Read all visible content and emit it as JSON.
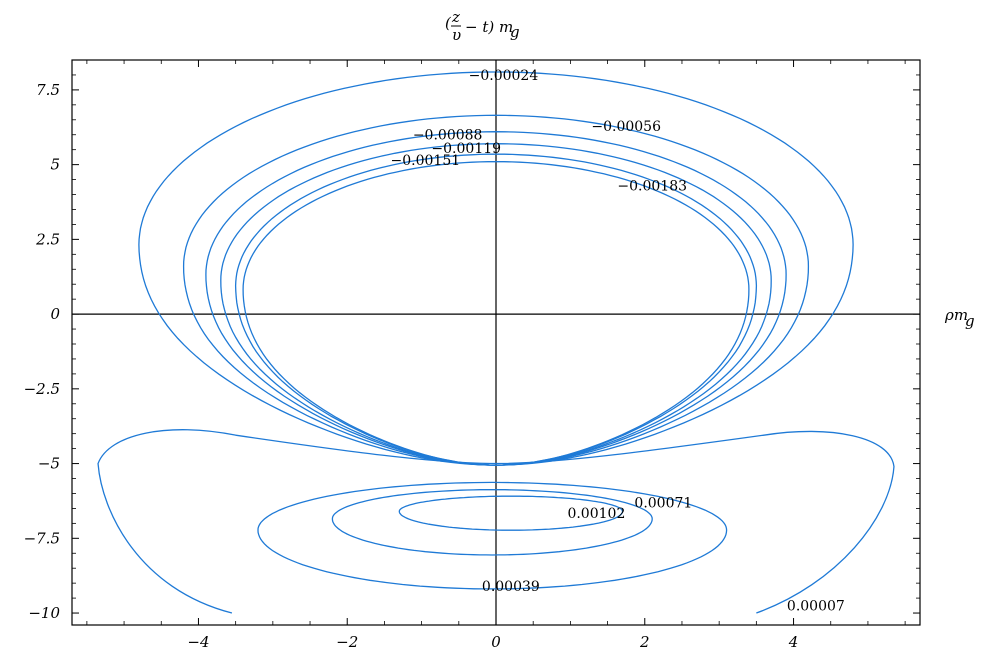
{
  "chart_data": {
    "type": "contour",
    "title": "(z/υ − t) m_g",
    "xlabel": "ρ m_g",
    "ylabel": "(z/υ − t) m_g",
    "xlim": [
      -5.7,
      5.7
    ],
    "ylim": [
      -10.4,
      8.5
    ],
    "x_ticks": [
      -4,
      -2,
      0,
      2,
      4
    ],
    "y_ticks": [
      7.5,
      5,
      2.5,
      0,
      -2.5,
      -5,
      -7.5,
      -10
    ],
    "x_tick_labels": [
      "−4",
      "−2",
      "0",
      "2",
      "4"
    ],
    "y_tick_labels": [
      "7.5",
      "5",
      "2.5",
      "0",
      "−2.5",
      "−5",
      "−7.5",
      "−10"
    ],
    "line_color": "#1f7ad6",
    "upper_contours": [
      {
        "label": "−0.00024",
        "top": 8.1,
        "halfwidth": 4.8
      },
      {
        "label": "−0.00056",
        "top": 6.65,
        "halfwidth": 4.2
      },
      {
        "label": "−0.00088",
        "top": 6.1,
        "halfwidth": 3.9
      },
      {
        "label": "−0.00119",
        "top": 5.7,
        "halfwidth": 3.7
      },
      {
        "label": "−0.00151",
        "top": 5.35,
        "halfwidth": 3.5
      },
      {
        "label": "−0.00183",
        "top": 5.1,
        "halfwidth": 3.4
      }
    ],
    "upper_bottom_y": -5.05,
    "lower_contours": [
      {
        "label": "0.00102",
        "xmin": -1.3,
        "xmax": 1.7,
        "ytop": -6.0,
        "ybot": -7.2
      },
      {
        "label": "0.00071",
        "xmin": -2.2,
        "xmax": 2.1,
        "ytop": -5.7,
        "ybot": -8.0
      },
      {
        "label": "0.00039",
        "xmin": -3.2,
        "xmax": 3.1,
        "ytop": -5.35,
        "ybot": -9.1
      },
      {
        "label": "0.00007",
        "outer": true
      }
    ],
    "contour_labels": [
      {
        "text": "−0.00024",
        "x": 0.1,
        "y": 8.0
      },
      {
        "text": "−0.00056",
        "x": 1.75,
        "y": 6.3
      },
      {
        "text": "−0.00088",
        "x": -0.65,
        "y": 6.0
      },
      {
        "text": "−0.00119",
        "x": -0.4,
        "y": 5.55
      },
      {
        "text": "−0.00151",
        "x": -0.95,
        "y": 5.15
      },
      {
        "text": "−0.00183",
        "x": 2.1,
        "y": 4.3
      },
      {
        "text": "0.00071",
        "x": 2.25,
        "y": -6.3
      },
      {
        "text": "0.00102",
        "x": 1.35,
        "y": -6.65
      },
      {
        "text": "0.00039",
        "x": 0.2,
        "y": -9.1
      },
      {
        "text": "0.00007",
        "x": 4.3,
        "y": -9.75
      }
    ]
  }
}
